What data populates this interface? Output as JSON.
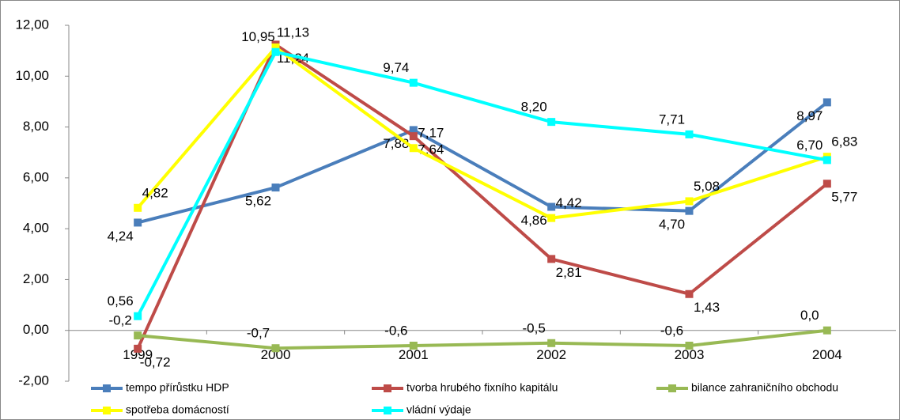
{
  "chart_data": {
    "type": "line",
    "categories": [
      "1999",
      "2000",
      "2001",
      "2002",
      "2003",
      "2004"
    ],
    "ylim": [
      -2,
      12
    ],
    "yticks": [
      {
        "value": -2,
        "label": "-2,00"
      },
      {
        "value": 0,
        "label": "0,00"
      },
      {
        "value": 2,
        "label": "2,00"
      },
      {
        "value": 4,
        "label": "4,00"
      },
      {
        "value": 6,
        "label": "6,00"
      },
      {
        "value": 8,
        "label": "8,00"
      },
      {
        "value": 10,
        "label": "10,00"
      },
      {
        "value": 12,
        "label": "12,00"
      }
    ],
    "legend": "bottom",
    "series": [
      {
        "name": "tempo přírůstku HDP",
        "color": "#4a7ebb",
        "values": [
          4.24,
          5.62,
          7.88,
          4.86,
          4.7,
          8.97
        ],
        "value_labels": [
          "4,24",
          "5,62",
          "7,88",
          "4,86",
          "4,70",
          "8,97"
        ]
      },
      {
        "name": "tvorba hrubého fixního kapitálu",
        "color": "#be4b48",
        "values": [
          -0.72,
          11.24,
          7.64,
          2.81,
          1.43,
          5.77
        ],
        "value_labels": [
          "-0,72",
          "11,24",
          "7,64",
          "2,81",
          "1,43",
          "5,77"
        ]
      },
      {
        "name": "bilance zahraničního obchodu",
        "color": "#98b954",
        "values": [
          -0.2,
          -0.7,
          -0.6,
          -0.5,
          -0.6,
          0.0
        ],
        "value_labels": [
          "-0,2",
          "-0,7",
          "-0,6",
          "-0,5",
          "-0,6",
          "0,0"
        ]
      },
      {
        "name": "spotřeba domácností",
        "color": "#ffff00",
        "values": [
          4.82,
          11.13,
          7.17,
          4.42,
          5.08,
          6.83
        ],
        "value_labels": [
          "4,82",
          "11,13",
          "7,17",
          "4,42",
          "5,08",
          "6,83"
        ]
      },
      {
        "name": "vládní výdaje",
        "color": "#00ffff",
        "values": [
          0.56,
          10.95,
          9.74,
          8.2,
          7.71,
          6.7
        ],
        "value_labels": [
          "0,56",
          "10,95",
          "9,74",
          "8,20",
          "7,71",
          "6,70"
        ]
      }
    ]
  }
}
